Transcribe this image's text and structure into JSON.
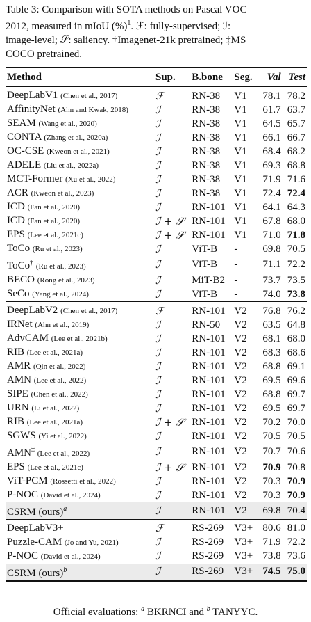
{
  "caption": {
    "line1": "Table 3: Comparison with SOTA methods on Pascal VOC",
    "line2": "2012, measured in mIoU (%)",
    "line2_sup": "1",
    "line2_rest": ". ℱ: fully-supervised; ℐ:",
    "line3": "image-level; 𝒮: saliency. †Imagenet-21k pretrained; ‡MS",
    "line4": "COCO pretrained."
  },
  "headers": {
    "method": "Method",
    "sup": "Sup.",
    "backbone": "B.bone",
    "seg": "Seg.",
    "val": "Val",
    "test": "Test"
  },
  "sections": [
    [
      {
        "m": "DeepLabV1",
        "c": "(Chen et al., 2017)",
        "s": "ℱ",
        "b": "RN-38",
        "g": "V1",
        "v": "78.1",
        "t": "78.2"
      },
      {
        "m": "AffinityNet",
        "c": "(Ahn and Kwak, 2018)",
        "s": "ℐ",
        "b": "RN-38",
        "g": "V1",
        "v": "61.7",
        "t": "63.7"
      },
      {
        "m": "SEAM",
        "c": "(Wang et al., 2020)",
        "s": "ℐ",
        "b": "RN-38",
        "g": "V1",
        "v": "64.5",
        "t": "65.7"
      },
      {
        "m": "CONTA",
        "c": "(Zhang et al., 2020a)",
        "s": "ℐ",
        "b": "RN-38",
        "g": "V1",
        "v": "66.1",
        "t": "66.7"
      },
      {
        "m": "OC-CSE",
        "c": "(Kweon et al., 2021)",
        "s": "ℐ",
        "b": "RN-38",
        "g": "V1",
        "v": "68.4",
        "t": "68.2"
      },
      {
        "m": "ADELE",
        "c": "(Liu et al., 2022a)",
        "s": "ℐ",
        "b": "RN-38",
        "g": "V1",
        "v": "69.3",
        "t": "68.8"
      },
      {
        "m": "MCT-Former",
        "c": "(Xu et al., 2022)",
        "s": "ℐ",
        "b": "RN-38",
        "g": "V1",
        "v": "71.9",
        "t": "71.6"
      },
      {
        "m": "ACR",
        "c": "(Kweon et al., 2023)",
        "s": "ℐ",
        "b": "RN-38",
        "g": "V1",
        "v": "72.4",
        "t": "72.4",
        "tb": true
      },
      {
        "m": "ICD",
        "c": "(Fan et al., 2020)",
        "s": "ℐ",
        "b": "RN-101",
        "g": "V1",
        "v": "64.1",
        "t": "64.3"
      },
      {
        "m": "ICD",
        "c": "(Fan et al., 2020)",
        "s": "ℐ + 𝒮",
        "b": "RN-101",
        "g": "V1",
        "v": "67.8",
        "t": "68.0"
      },
      {
        "m": "EPS",
        "c": "(Lee et al., 2021c)",
        "s": "ℐ + 𝒮",
        "b": "RN-101",
        "g": "V1",
        "v": "71.0",
        "t": "71.8",
        "tb": true
      },
      {
        "m": "ToCo",
        "c": "(Ru et al., 2023)",
        "s": "ℐ",
        "b": "ViT-B",
        "g": "-",
        "v": "69.8",
        "t": "70.5"
      },
      {
        "m": "ToCo",
        "ms": "†",
        "c": "(Ru et al., 2023)",
        "s": "ℐ",
        "b": "ViT-B",
        "g": "-",
        "v": "71.1",
        "t": "72.2"
      },
      {
        "m": "BECO",
        "c": "(Rong et al., 2023)",
        "s": "ℐ",
        "b": "MiT-B2",
        "g": "-",
        "v": "73.7",
        "t": "73.5"
      },
      {
        "m": "SeCo",
        "c": "(Yang et al., 2024)",
        "s": "ℐ",
        "b": "ViT-B",
        "g": "-",
        "v": "74.0",
        "t": "73.8",
        "tb": true
      }
    ],
    [
      {
        "m": "DeepLabV2",
        "c": "(Chen et al., 2017)",
        "s": "ℱ",
        "b": "RN-101",
        "g": "V2",
        "v": "76.8",
        "t": "76.2"
      },
      {
        "m": "IRNet",
        "c": "(Ahn et al., 2019)",
        "s": "ℐ",
        "b": "RN-50",
        "g": "V2",
        "v": "63.5",
        "t": "64.8"
      },
      {
        "m": "AdvCAM",
        "c": "(Lee et al., 2021b)",
        "s": "ℐ",
        "b": "RN-101",
        "g": "V2",
        "v": "68.1",
        "t": "68.0"
      },
      {
        "m": "RIB",
        "c": "(Lee et al., 2021a)",
        "s": "ℐ",
        "b": "RN-101",
        "g": "V2",
        "v": "68.3",
        "t": "68.6"
      },
      {
        "m": "AMR",
        "c": "(Qin et al., 2022)",
        "s": "ℐ",
        "b": "RN-101",
        "g": "V2",
        "v": "68.8",
        "t": "69.1"
      },
      {
        "m": "AMN",
        "c": "(Lee et al., 2022)",
        "s": "ℐ",
        "b": "RN-101",
        "g": "V2",
        "v": "69.5",
        "t": "69.6"
      },
      {
        "m": "SIPE",
        "c": "(Chen et al., 2022)",
        "s": "ℐ",
        "b": "RN-101",
        "g": "V2",
        "v": "68.8",
        "t": "69.7"
      },
      {
        "m": "URN",
        "c": "(Li et al., 2022)",
        "s": "ℐ",
        "b": "RN-101",
        "g": "V2",
        "v": "69.5",
        "t": "69.7"
      },
      {
        "m": "RIB",
        "c": "(Lee et al., 2021a)",
        "s": "ℐ + 𝒮",
        "b": "RN-101",
        "g": "V2",
        "v": "70.2",
        "t": "70.0"
      },
      {
        "m": "SGWS",
        "c": "(Yi et al., 2022)",
        "s": "ℐ",
        "b": "RN-101",
        "g": "V2",
        "v": "70.5",
        "t": "70.5"
      },
      {
        "m": "AMN",
        "ms": "‡",
        "c": "(Lee et al., 2022)",
        "s": "ℐ",
        "b": "RN-101",
        "g": "V2",
        "v": "70.7",
        "t": "70.6"
      },
      {
        "m": "EPS",
        "c": "(Lee et al., 2021c)",
        "s": "ℐ + 𝒮",
        "b": "RN-101",
        "g": "V2",
        "v": "70.9",
        "t": "70.8",
        "vb": true
      },
      {
        "m": "ViT-PCM",
        "c": "(Rossetti et al., 2022)",
        "s": "ℐ",
        "b": "RN-101",
        "g": "V2",
        "v": "70.3",
        "t": "70.9",
        "tb": true
      },
      {
        "m": "P-NOC",
        "c": "(David et al., 2024)",
        "s": "ℐ",
        "b": "RN-101",
        "g": "V2",
        "v": "70.3",
        "t": "70.9",
        "tb": true
      },
      {
        "m": "CSRM (ours)",
        "ms": "a",
        "msi": true,
        "c": "",
        "s": "ℐ",
        "b": "RN-101",
        "g": "V2",
        "v": "69.8",
        "t": "70.4",
        "hl": true
      }
    ],
    [
      {
        "m": "DeepLabV3+",
        "c": "",
        "s": "ℱ",
        "b": "RS-269",
        "g": "V3+",
        "v": "80.6",
        "t": "81.0"
      },
      {
        "m": "Puzzle-CAM",
        "c": "(Jo and Yu, 2021)",
        "s": "ℐ",
        "b": "RS-269",
        "g": "V3+",
        "v": "71.9",
        "t": "72.2"
      },
      {
        "m": "P-NOC",
        "c": "(David et al., 2024)",
        "s": "ℐ",
        "b": "RS-269",
        "g": "V3+",
        "v": "73.8",
        "t": "73.6"
      },
      {
        "m": "CSRM (ours)",
        "ms": "b",
        "msi": true,
        "c": "",
        "s": "ℐ",
        "b": "RS-269",
        "g": "V3+",
        "v": "74.5",
        "t": "75.0",
        "vb": true,
        "tb": true,
        "hl": true
      }
    ]
  ],
  "footnote": {
    "prefix": "Official evaluations: ",
    "a_mark": "a",
    "a_text": " BKRNCI and ",
    "b_mark": "b",
    "b_text": " TANYYC."
  }
}
